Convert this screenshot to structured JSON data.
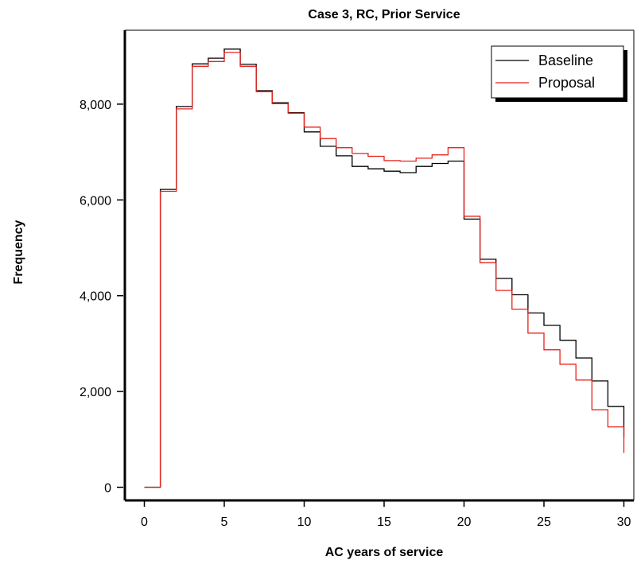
{
  "chart_data": {
    "type": "line",
    "title": "Case 3, RC, Prior Service",
    "xlabel": "AC years of service",
    "ylabel": "Frequency",
    "xlim": [
      0,
      30
    ],
    "ylim": [
      0,
      9000
    ],
    "x_ticks": [
      0,
      5,
      10,
      15,
      20,
      25,
      30
    ],
    "x_tick_labels": [
      "0",
      "5",
      "10",
      "15",
      "20",
      "25",
      "30"
    ],
    "y_ticks": [
      0,
      2000,
      4000,
      6000,
      8000
    ],
    "y_tick_labels": [
      "0",
      "2,000",
      "4,000",
      "6,000",
      "8,000"
    ],
    "grid": false,
    "legend_position": "top-right",
    "step_style": "stairs",
    "series": [
      {
        "name": "Baseline",
        "color": "#000000",
        "x": [
          0,
          1,
          2,
          3,
          4,
          5,
          6,
          7,
          8,
          9,
          10,
          11,
          12,
          13,
          14,
          15,
          16,
          17,
          18,
          19,
          20,
          21,
          22,
          23,
          24,
          25,
          26,
          27,
          28,
          29
        ],
        "values": [
          0,
          6220,
          7950,
          8840,
          8960,
          9150,
          8830,
          8280,
          8030,
          7820,
          7420,
          7120,
          6920,
          6700,
          6650,
          6600,
          6570,
          6700,
          6760,
          6810,
          5600,
          4760,
          4360,
          4020,
          3640,
          3380,
          3070,
          2700,
          2220,
          1690
        ],
        "end_value": 1050
      },
      {
        "name": "Proposal",
        "color": "#e8211d",
        "x": [
          0,
          1,
          2,
          3,
          4,
          5,
          6,
          7,
          8,
          9,
          10,
          11,
          12,
          13,
          14,
          15,
          16,
          17,
          18,
          19,
          20,
          21,
          22,
          23,
          24,
          25,
          26,
          27,
          28,
          29
        ],
        "values": [
          0,
          6180,
          7900,
          8790,
          8890,
          9080,
          8790,
          8260,
          8010,
          7810,
          7520,
          7280,
          7090,
          6970,
          6910,
          6820,
          6810,
          6870,
          6940,
          7090,
          5660,
          4690,
          4110,
          3720,
          3220,
          2870,
          2570,
          2240,
          1620,
          1260
        ],
        "end_value": 720
      }
    ]
  }
}
